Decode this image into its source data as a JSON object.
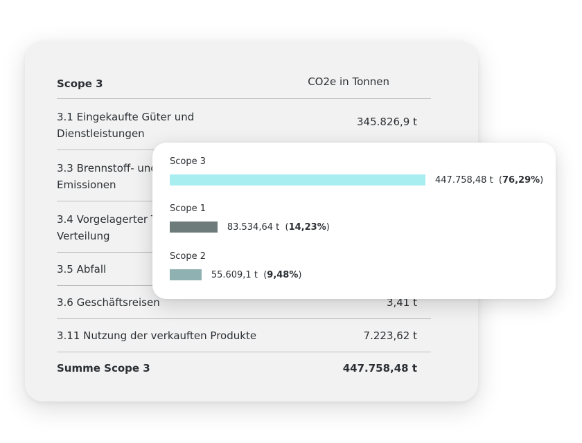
{
  "table": {
    "header": {
      "label": "Scope 3",
      "value": "CO2e in Tonnen"
    },
    "rows": [
      {
        "label": "3.1 Eingekaufte Güter und Dienstleistungen",
        "value": "345.826,9 t"
      },
      {
        "label": "3.3 Brennstoff- und energiebezogene Emissionen",
        "value": ""
      },
      {
        "label": "3.4 Vorgelagerter Transport und Verteilung",
        "value": ""
      },
      {
        "label": "3.5 Abfall",
        "value": ""
      },
      {
        "label": "3.6 Geschäftsreisen",
        "value": "3,41 t"
      },
      {
        "label": "3.11 Nutzung der verkauften Produkte",
        "value": "7.223,62 t"
      }
    ],
    "total": {
      "label": "Summe Scope 3",
      "value": "447.758,48 t"
    }
  },
  "chart_data": {
    "type": "bar",
    "orientation": "horizontal",
    "categories": [
      "Scope 3",
      "Scope 1",
      "Scope 2"
    ],
    "values": [
      447758.48,
      83534.64,
      55609.1
    ],
    "value_labels": [
      "447.758,48 t",
      "83.534,64 t",
      "55.609,1 t"
    ],
    "percent_labels": [
      "76,29%",
      "14,23%",
      "9,48%"
    ],
    "percents": [
      76.29,
      14.23,
      9.48
    ],
    "colors": [
      "#a8eef0",
      "#6e7b7b",
      "#8fb1b1"
    ],
    "title": "",
    "xlabel": "",
    "ylabel": ""
  }
}
